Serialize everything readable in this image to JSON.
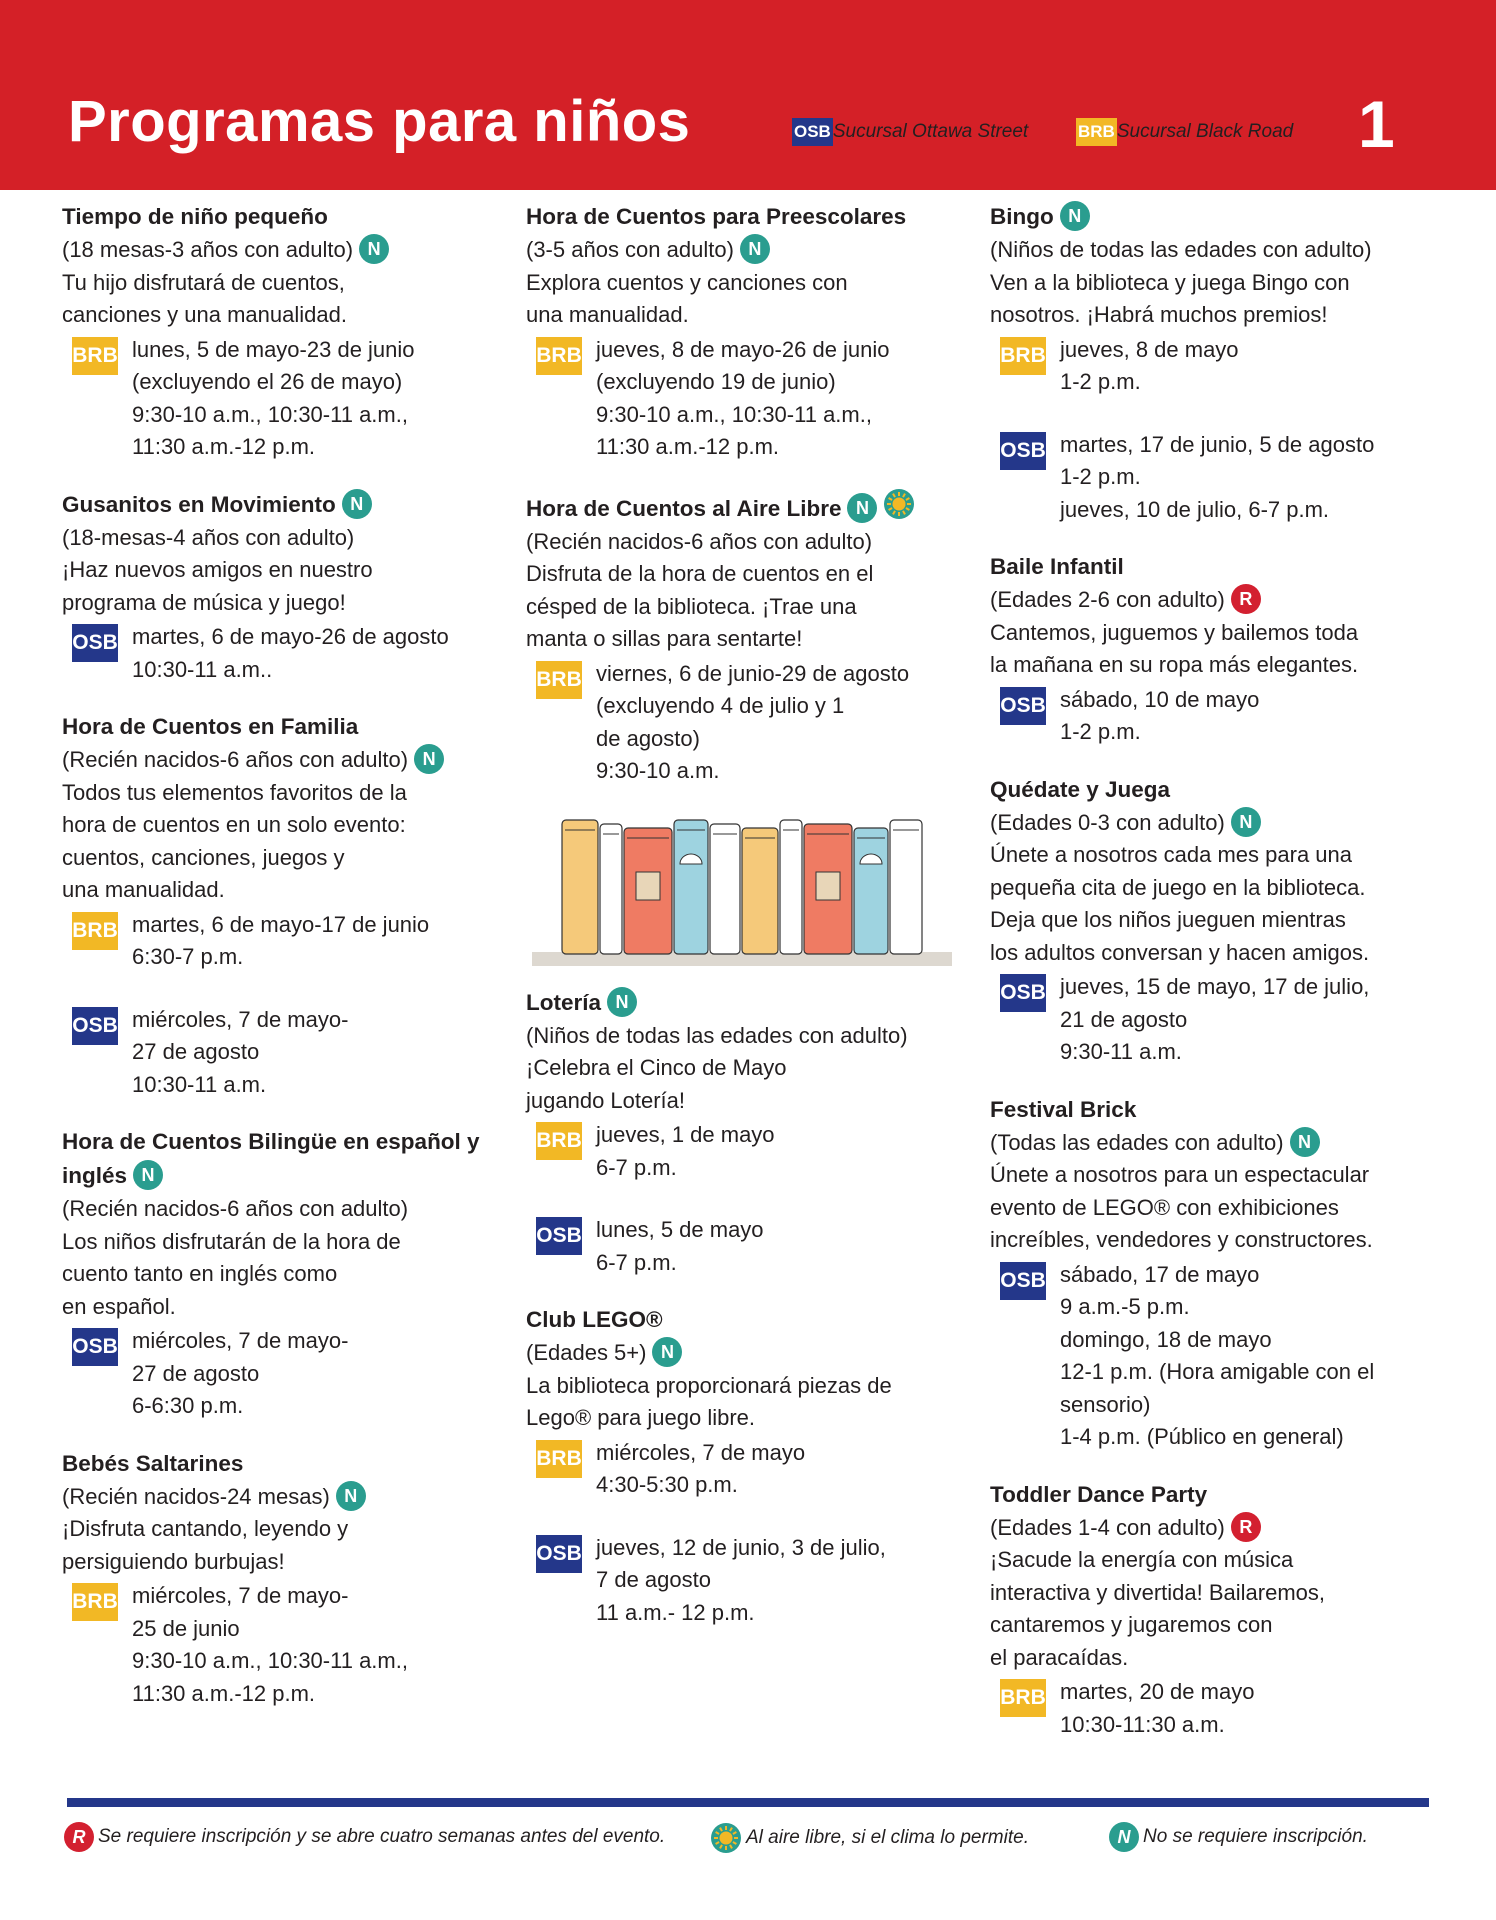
{
  "header": {
    "title": "Programas para niños",
    "legend": [
      {
        "code": "OSB",
        "label": "Sucursal Ottawa Street"
      },
      {
        "code": "BRB",
        "label": "Sucursal Black Road"
      }
    ],
    "page_number": "1"
  },
  "columns": [
    {
      "programs": [
        {
          "title": "Tiempo de niño pequeño",
          "title_badges": [],
          "age": "(18 mesas-3 años con adulto)",
          "age_badges": [
            "N"
          ],
          "description": [
            "Tu hijo disfrutará de cuentos,",
            "canciones y una manualidad."
          ],
          "schedules": [
            {
              "branch": "BRB",
              "lines": [
                "lunes, 5 de mayo-23 de junio",
                "(excluyendo el 26 de mayo)",
                "9:30-10 a.m., 10:30-11 a.m.,",
                "11:30 a.m.-12 p.m."
              ]
            }
          ]
        },
        {
          "title": "Gusanitos en Movimiento",
          "title_badges": [
            "N"
          ],
          "age": "(18-mesas-4 años con adulto)",
          "age_badges": [],
          "description": [
            "¡Haz nuevos amigos en nuestro",
            "programa de música y juego!"
          ],
          "schedules": [
            {
              "branch": "OSB",
              "lines": [
                "martes, 6 de mayo-26 de agosto",
                "10:30-11 a.m.."
              ]
            }
          ]
        },
        {
          "title": "Hora de Cuentos en Familia",
          "title_badges": [],
          "age": "(Recién nacidos-6 años con adulto)",
          "age_badges": [
            "N"
          ],
          "description": [
            "Todos tus elementos favoritos de la",
            "hora de cuentos en un solo evento:",
            "cuentos, canciones, juegos y",
            "una manualidad."
          ],
          "schedules": [
            {
              "branch": "BRB",
              "lines": [
                "martes, 6 de mayo-17 de junio",
                "6:30-7 p.m."
              ]
            },
            {
              "branch": "OSB",
              "lines": [
                "miércoles, 7 de mayo-",
                "27 de agosto",
                "10:30-11 a.m."
              ]
            }
          ]
        },
        {
          "title": "Hora de Cuentos Bilingüe en español y inglés",
          "title_badges": [
            "N"
          ],
          "age": "(Recién nacidos-6 años con adulto)",
          "age_badges": [],
          "description": [
            "Los niños disfrutarán de la hora de",
            "cuento tanto en inglés como",
            "en español."
          ],
          "schedules": [
            {
              "branch": "OSB",
              "lines": [
                "miércoles, 7 de mayo-",
                "27 de agosto",
                "6-6:30 p.m."
              ]
            }
          ]
        },
        {
          "title": "Bebés Saltarines",
          "title_badges": [],
          "age": "(Recién nacidos-24 mesas)",
          "age_badges": [
            "N"
          ],
          "description": [
            "¡Disfruta cantando, leyendo y",
            "persiguiendo burbujas!"
          ],
          "schedules": [
            {
              "branch": "BRB",
              "lines": [
                "miércoles, 7 de mayo-",
                "25 de junio",
                "9:30-10 a.m., 10:30-11 a.m.,",
                "11:30 a.m.-12 p.m."
              ]
            }
          ]
        }
      ]
    },
    {
      "programs": [
        {
          "title": "Hora de Cuentos para Preescolares",
          "title_badges": [],
          "age": "(3-5 años con adulto)",
          "age_badges": [
            "N"
          ],
          "description": [
            "Explora cuentos y canciones con",
            "una manualidad."
          ],
          "schedules": [
            {
              "branch": "BRB",
              "lines": [
                "jueves, 8 de mayo-26 de junio",
                "(excluyendo 19 de junio)",
                "9:30-10 a.m., 10:30-11 a.m.,",
                "11:30 a.m.-12 p.m."
              ]
            }
          ]
        },
        {
          "title": "Hora de Cuentos al Aire Libre",
          "title_badges": [
            "N"
          ],
          "outdoor": true,
          "age": "(Recién nacidos-6 años con adulto)",
          "age_badges": [],
          "description": [
            "Disfruta de la hora de cuentos en el",
            "césped de la biblioteca. ¡Trae una",
            "manta o sillas para sentarte!"
          ],
          "schedules": [
            {
              "branch": "BRB",
              "lines": [
                "viernes, 6 de junio-29 de agosto",
                "(excluyendo 4 de julio y 1",
                "de agosto)",
                "9:30-10 a.m."
              ]
            }
          ]
        },
        {
          "title": "Lotería",
          "title_badges": [
            "N"
          ],
          "age": "(Niños de todas las edades con adulto)",
          "age_badges": [],
          "description": [
            "¡Celebra el Cinco de Mayo",
            "jugando Lotería!"
          ],
          "schedules": [
            {
              "branch": "BRB",
              "lines": [
                "jueves, 1 de mayo",
                "6-7 p.m."
              ]
            },
            {
              "branch": "OSB",
              "lines": [
                "lunes, 5 de mayo",
                "6-7 p.m."
              ]
            }
          ]
        },
        {
          "title": "Club LEGO®",
          "title_badges": [],
          "age": "(Edades 5+)",
          "age_badges": [
            "N"
          ],
          "description": [
            "La biblioteca proporcionará piezas de",
            "Lego® para juego libre."
          ],
          "schedules": [
            {
              "branch": "BRB",
              "lines": [
                "miércoles, 7 de mayo",
                "4:30-5:30 p.m."
              ]
            },
            {
              "branch": "OSB",
              "lines": [
                "jueves, 12 de junio, 3 de julio,",
                "7 de agosto",
                "11 a.m.- 12 p.m."
              ]
            }
          ]
        }
      ]
    },
    {
      "programs": [
        {
          "title": "Bingo",
          "title_badges": [
            "N"
          ],
          "age": "(Niños de todas las edades con adulto)",
          "age_badges": [],
          "description": [
            "Ven a la biblioteca y juega Bingo con",
            "nosotros. ¡Habrá muchos premios!"
          ],
          "schedules": [
            {
              "branch": "BRB",
              "lines": [
                "jueves, 8 de mayo",
                "1-2 p.m."
              ]
            },
            {
              "branch": "OSB",
              "lines": [
                "martes, 17 de junio, 5 de agosto",
                "1-2 p.m.",
                "jueves, 10 de julio, 6-7 p.m."
              ]
            }
          ]
        },
        {
          "title": "Baile Infantil",
          "title_badges": [],
          "age": "(Edades 2-6 con adulto)",
          "age_badges": [
            "R"
          ],
          "description": [
            "Cantemos, juguemos y bailemos toda",
            "la mañana en su ropa más elegantes."
          ],
          "schedules": [
            {
              "branch": "OSB",
              "lines": [
                "sábado, 10 de mayo",
                "1-2 p.m."
              ]
            }
          ]
        },
        {
          "title": "Quédate y Juega",
          "title_badges": [],
          "age": "(Edades 0-3 con adulto)",
          "age_badges": [
            "N"
          ],
          "description": [
            "Únete a nosotros cada mes para una",
            "pequeña cita de juego en la biblioteca.",
            "Deja que los niños jueguen mientras",
            "los adultos conversan y hacen amigos."
          ],
          "schedules": [
            {
              "branch": "OSB",
              "lines": [
                "jueves, 15 de mayo, 17 de julio,",
                "21 de agosto",
                "9:30-11 a.m."
              ]
            }
          ]
        },
        {
          "title": "Festival Brick",
          "title_badges": [],
          "age": "(Todas las edades con adulto)",
          "age_badges": [
            "N"
          ],
          "description": [
            "Únete a nosotros para un espectacular",
            "evento de LEGO® con exhibiciones",
            "increíbles, vendedores y constructores."
          ],
          "schedules": [
            {
              "branch": "OSB",
              "lines": [
                "sábado, 17 de mayo",
                "9 a.m.-5 p.m.",
                "domingo, 18 de mayo",
                "12-1 p.m. (Hora amigable con el",
                "sensorio)",
                "1-4 p.m. (Público en general)"
              ]
            }
          ]
        },
        {
          "title": "Toddler Dance Party",
          "title_badges": [],
          "age": "(Edades 1-4 con adulto)",
          "age_badges": [
            "R"
          ],
          "description": [
            "¡Sacude la energía con música",
            "interactiva y divertida! Bailaremos,",
            "cantaremos y jugaremos con",
            "el paracaídas."
          ],
          "schedules": [
            {
              "branch": "BRB",
              "lines": [
                "martes, 20 de mayo",
                "10:30-11:30 a.m."
              ]
            }
          ]
        }
      ]
    }
  ],
  "footer": {
    "notes": [
      {
        "symbol": "R",
        "text": "Se requiere inscripción y se abre cuatro semanas antes del evento."
      },
      {
        "text": "Al aire libre, si el clima lo permite."
      },
      {
        "symbol": "N",
        "text": "No se requiere inscripción."
      }
    ]
  }
}
